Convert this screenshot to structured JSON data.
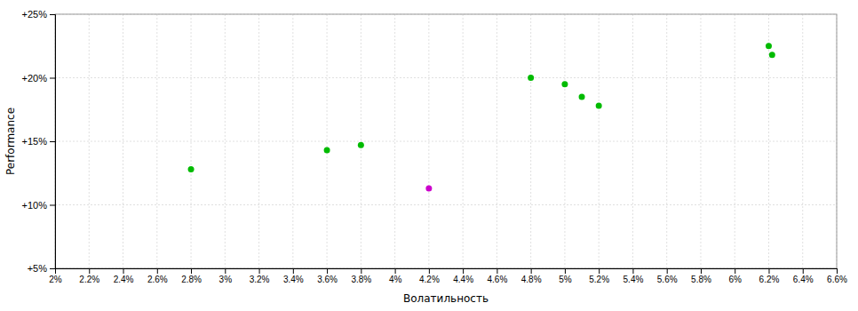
{
  "chart_data": {
    "type": "scatter",
    "xlabel": "Волатильность",
    "ylabel": "Performance",
    "grid": true,
    "xlim": [
      0.02,
      0.066
    ],
    "ylim": [
      0.05,
      0.25
    ],
    "xticks": [
      {
        "value": 0.02,
        "label": "2%"
      },
      {
        "value": 0.022,
        "label": "2.2%"
      },
      {
        "value": 0.024,
        "label": "2.4%"
      },
      {
        "value": 0.026,
        "label": "2.6%"
      },
      {
        "value": 0.028,
        "label": "2.8%"
      },
      {
        "value": 0.03,
        "label": "3%"
      },
      {
        "value": 0.032,
        "label": "3.2%"
      },
      {
        "value": 0.034,
        "label": "3.4%"
      },
      {
        "value": 0.036,
        "label": "3.6%"
      },
      {
        "value": 0.038,
        "label": "3.8%"
      },
      {
        "value": 0.04,
        "label": "4%"
      },
      {
        "value": 0.042,
        "label": "4.2%"
      },
      {
        "value": 0.044,
        "label": "4.4%"
      },
      {
        "value": 0.046,
        "label": "4.6%"
      },
      {
        "value": 0.048,
        "label": "4.8%"
      },
      {
        "value": 0.05,
        "label": "5%"
      },
      {
        "value": 0.052,
        "label": "5.2%"
      },
      {
        "value": 0.054,
        "label": "5.4%"
      },
      {
        "value": 0.056,
        "label": "5.6%"
      },
      {
        "value": 0.058,
        "label": "5.8%"
      },
      {
        "value": 0.06,
        "label": "6%"
      },
      {
        "value": 0.062,
        "label": "6.2%"
      },
      {
        "value": 0.064,
        "label": "6.4%"
      },
      {
        "value": 0.066,
        "label": "6.6%"
      }
    ],
    "yticks": [
      {
        "value": 0.05,
        "label": "+5%"
      },
      {
        "value": 0.1,
        "label": "+10%"
      },
      {
        "value": 0.15,
        "label": "+15%"
      },
      {
        "value": 0.2,
        "label": "+20%"
      },
      {
        "value": 0.25,
        "label": "+25%"
      }
    ],
    "series": [
      {
        "color": "#00bb00",
        "x": [
          0.028,
          0.036,
          0.038,
          0.048,
          0.05,
          0.051,
          0.052,
          0.062,
          0.0622
        ],
        "values": [
          0.128,
          0.143,
          0.147,
          0.2,
          0.195,
          0.185,
          0.178,
          0.225,
          0.218
        ]
      },
      {
        "color": "#cc00cc",
        "x": [
          0.042
        ],
        "values": [
          0.113
        ]
      }
    ]
  }
}
